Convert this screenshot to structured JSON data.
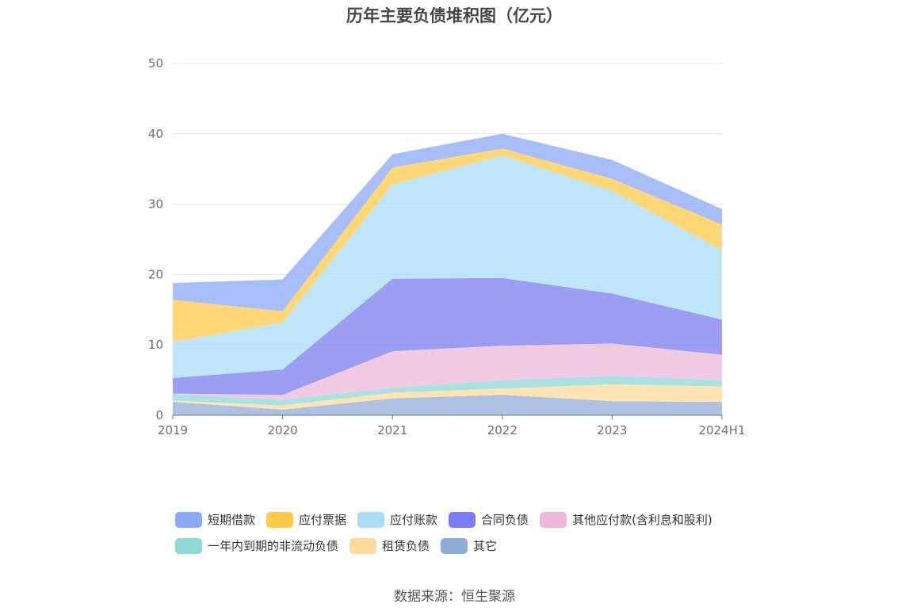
{
  "chart_data": {
    "type": "area",
    "stacked": true,
    "title": "历年主要负债堆积图（亿元）",
    "categories": [
      "2019",
      "2020",
      "2021",
      "2022",
      "2023",
      "2024H1"
    ],
    "ylim": [
      0,
      50
    ],
    "yticks": [
      "0",
      "10",
      "20",
      "30",
      "40",
      "50"
    ],
    "grid": true,
    "legend_position": "bottom",
    "series": [
      {
        "name": "其它",
        "color": "#8fadd9",
        "values": [
          1.9,
          0.8,
          2.4,
          2.9,
          2.0,
          1.9
        ]
      },
      {
        "name": "租赁负债",
        "color": "#ffd99a",
        "values": [
          0.2,
          0.6,
          0.8,
          0.9,
          2.4,
          2.2
        ]
      },
      {
        "name": "一年内到期的非流动负债",
        "color": "#8ed8d8",
        "values": [
          0.9,
          0.8,
          0.7,
          1.2,
          1.2,
          0.9
        ]
      },
      {
        "name": "其他应付款(含利息和股利)",
        "color": "#ebb8da",
        "values": [
          0.1,
          0.7,
          5.2,
          4.9,
          4.6,
          3.6
        ]
      },
      {
        "name": "合同负债",
        "color": "#7b7ef0",
        "values": [
          2.2,
          3.6,
          10.3,
          9.6,
          7.1,
          5.0
        ]
      },
      {
        "name": "应付账款",
        "color": "#a9dcf5",
        "values": [
          5.1,
          6.7,
          13.4,
          17.4,
          14.6,
          9.9
        ]
      },
      {
        "name": "应付票据",
        "color": "#ffc94a",
        "values": [
          6.0,
          1.6,
          2.4,
          1.0,
          1.7,
          3.6
        ]
      },
      {
        "name": "短期借款",
        "color": "#8aa8f8",
        "values": [
          2.4,
          4.5,
          1.9,
          2.1,
          2.7,
          2.2
        ]
      }
    ],
    "legend_order": [
      "短期借款",
      "应付票据",
      "应付账款",
      "合同负债",
      "其他应付款(含利息和股利)",
      "一年内到期的非流动负债",
      "租赁负债",
      "其它"
    ]
  },
  "source": "数据来源：恒生聚源"
}
